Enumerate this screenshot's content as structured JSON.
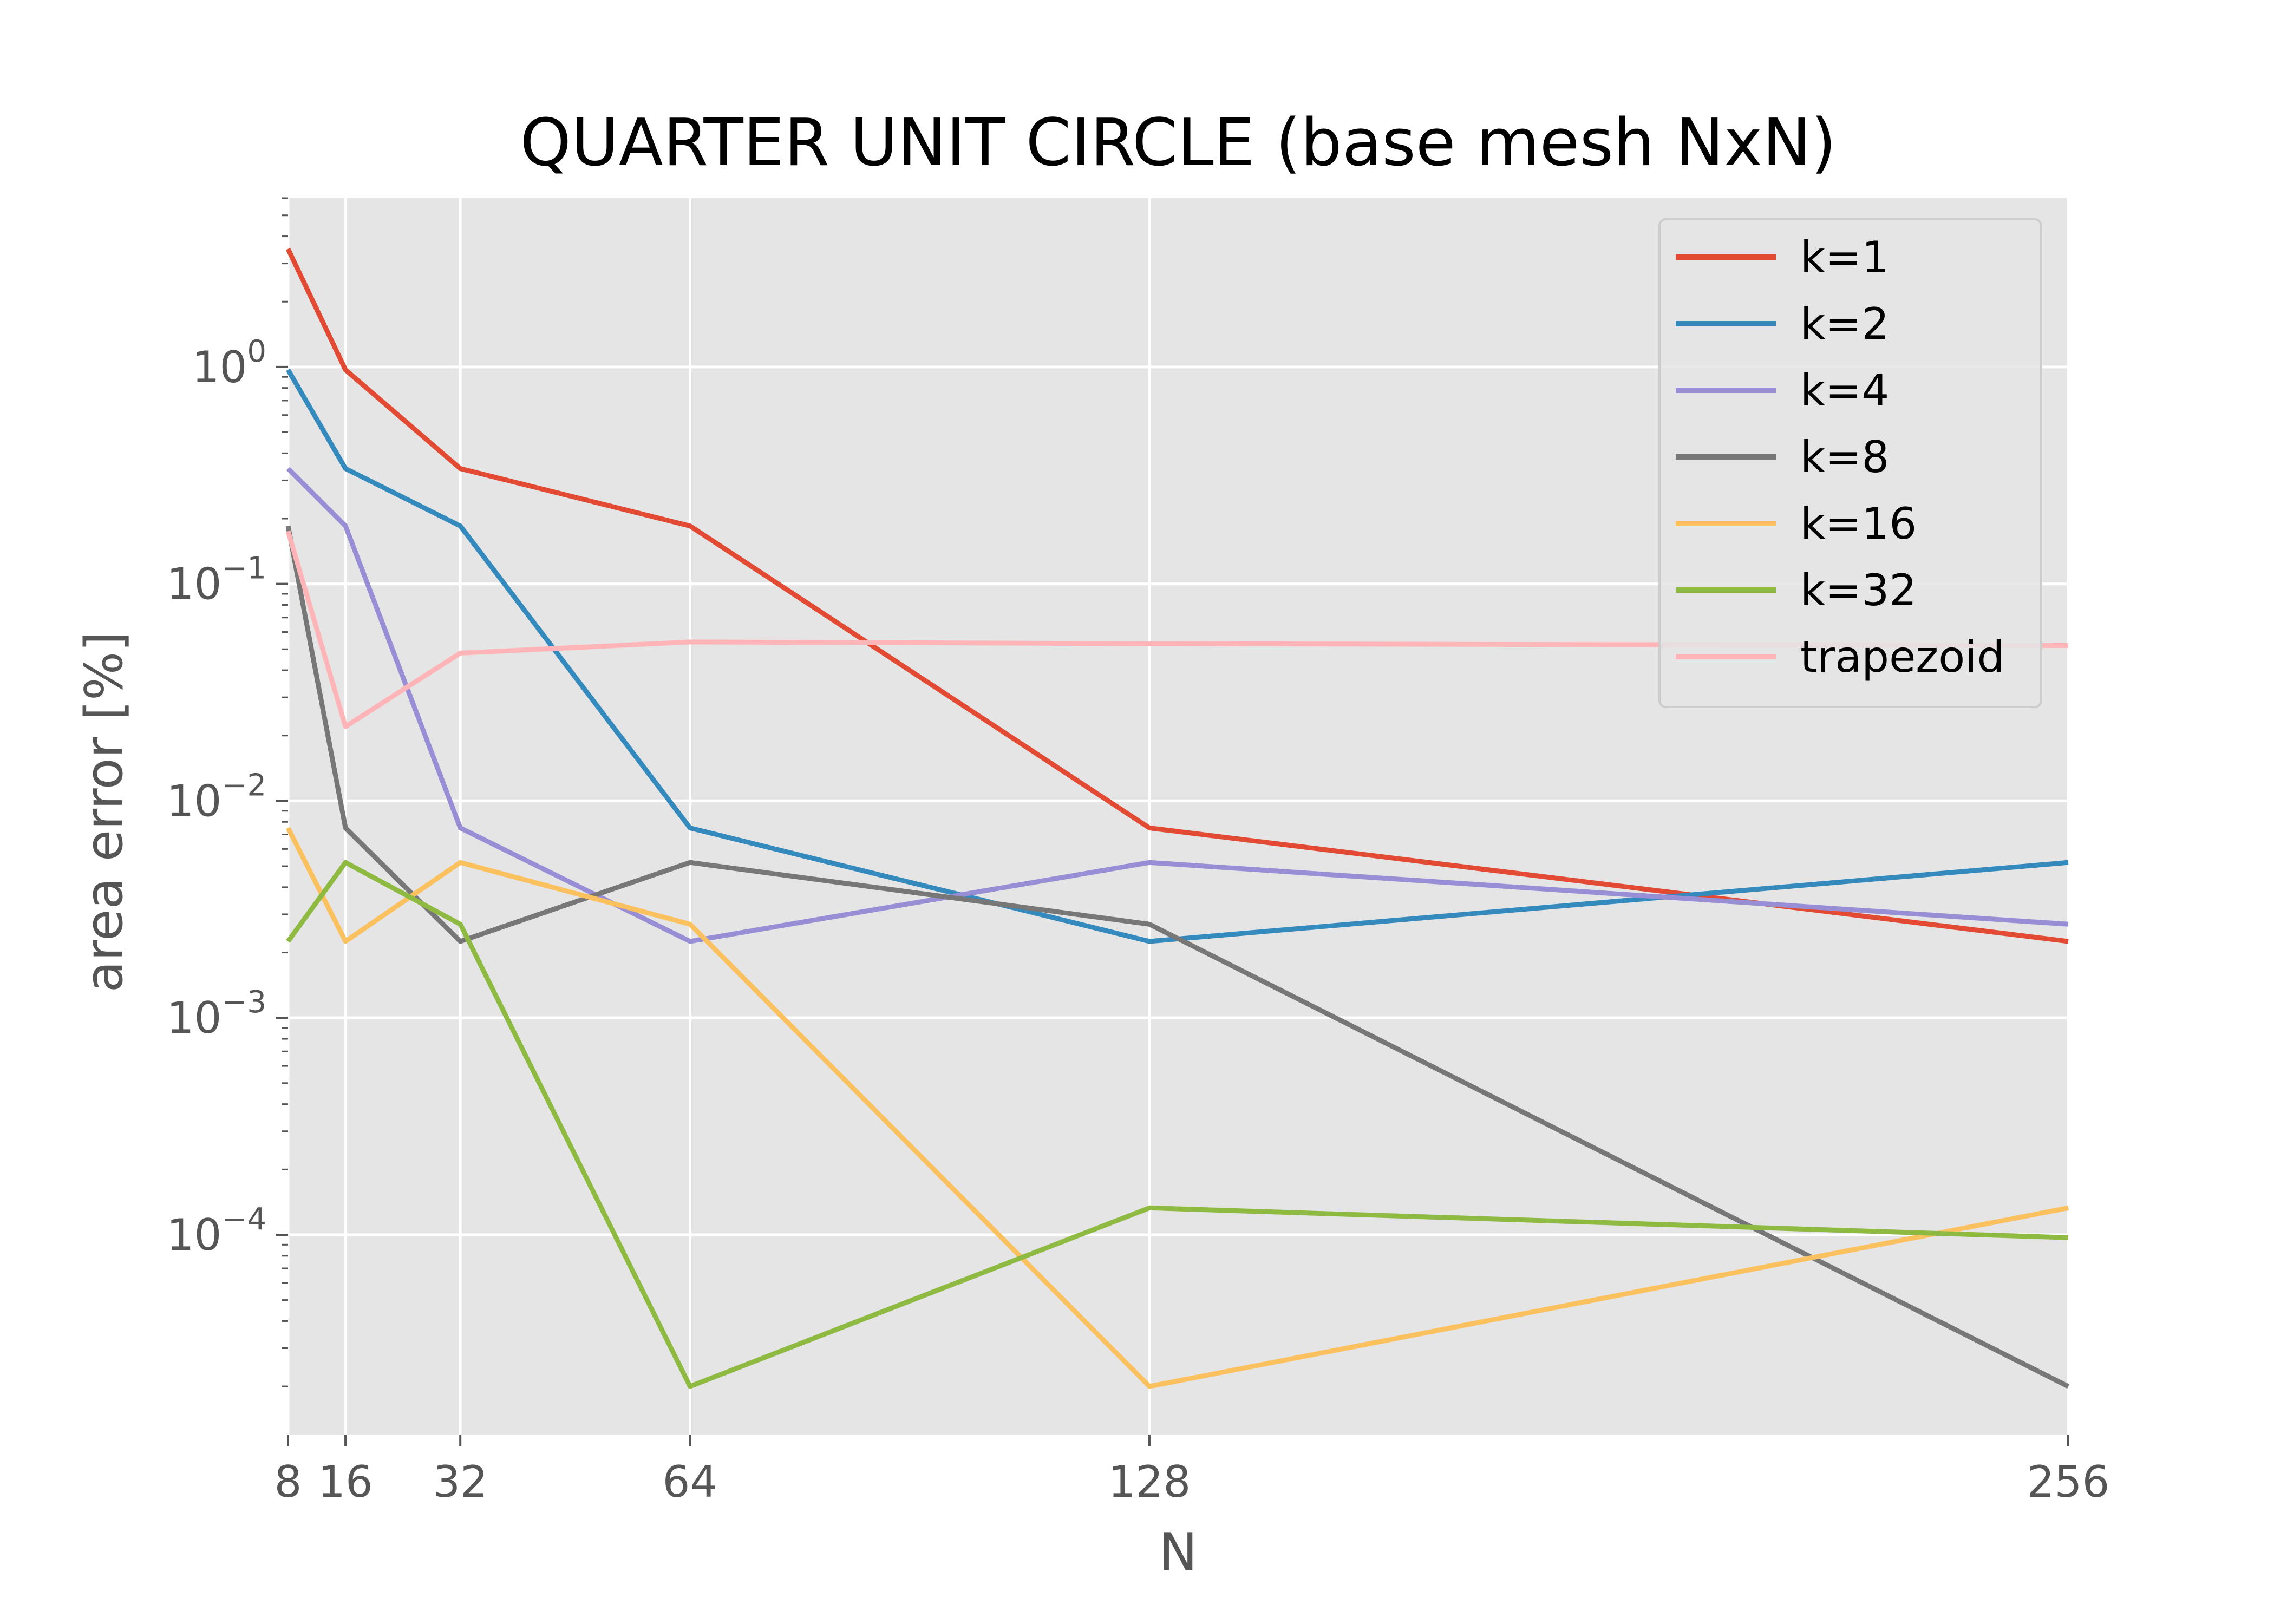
{
  "chart_data": {
    "type": "line",
    "title": "QUARTER UNIT CIRCLE (base mesh NxN)",
    "xlabel": "N",
    "ylabel": "area error [%]",
    "x": [
      8,
      16,
      32,
      64,
      128,
      256
    ],
    "xticks": [
      "8",
      "16",
      "32",
      "64",
      "128",
      "256"
    ],
    "xlim": [
      8,
      256
    ],
    "yscale": "log",
    "ylim": [
      1.2e-05,
      6
    ],
    "yticks": [
      {
        "base": "10",
        "exp": "0",
        "value": 1
      },
      {
        "base": "10",
        "exp": "−1",
        "value": 0.1
      },
      {
        "base": "10",
        "exp": "−2",
        "value": 0.01
      },
      {
        "base": "10",
        "exp": "−3",
        "value": 0.001
      },
      {
        "base": "10",
        "exp": "−4",
        "value": 0.0001
      }
    ],
    "grid": true,
    "legend_position": "top-right",
    "background": "#e5e5e5",
    "series": [
      {
        "name": "k=1",
        "color": "#e24a33",
        "values": [
          3.5,
          0.97,
          0.34,
          0.185,
          0.0075,
          0.00225
        ]
      },
      {
        "name": "k=2",
        "color": "#348abd",
        "values": [
          0.97,
          0.34,
          0.185,
          0.0075,
          0.00225,
          0.0052
        ]
      },
      {
        "name": "k=4",
        "color": "#988ed5",
        "values": [
          0.34,
          0.185,
          0.0075,
          0.00225,
          0.0052,
          0.0027
        ]
      },
      {
        "name": "k=8",
        "color": "#777777",
        "values": [
          0.185,
          0.0075,
          0.00225,
          0.0052,
          0.0027,
          2e-05
        ]
      },
      {
        "name": "k=16",
        "color": "#fbc15e",
        "values": [
          0.0075,
          0.00225,
          0.0052,
          0.0027,
          2e-05,
          0.000133
        ]
      },
      {
        "name": "k=32",
        "color": "#8eba42",
        "values": [
          0.00225,
          0.0052,
          0.0027,
          2e-05,
          0.000133,
          9.7e-05
        ]
      },
      {
        "name": "trapezoid",
        "color": "#ffb5b8",
        "values": [
          0.175,
          0.022,
          0.048,
          0.054,
          0.053,
          0.052
        ]
      }
    ]
  }
}
